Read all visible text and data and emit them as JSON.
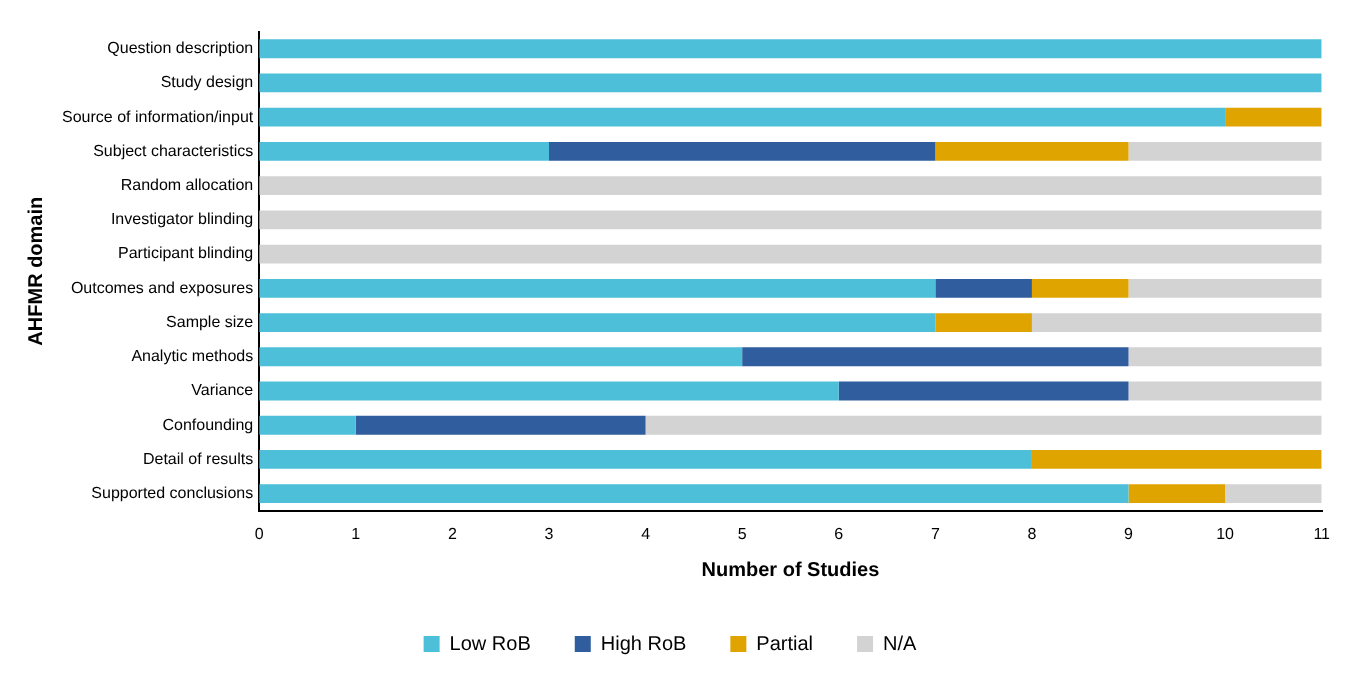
{
  "chart_data": {
    "type": "bar",
    "orientation": "horizontal",
    "stacked": true,
    "xlabel": "Number of Studies",
    "ylabel": "AHFMR domain",
    "categories": [
      "Question description",
      "Study design",
      "Source of information/input",
      "Subject characteristics",
      "Random allocation",
      "Investigator blinding",
      "Participant blinding",
      "Outcomes and exposures",
      "Sample size",
      "Analytic methods",
      "Variance",
      "Confounding",
      "Detail of results",
      "Supported conclusions"
    ],
    "series": [
      {
        "name": "Low RoB",
        "color": "#4dbfd9",
        "values": [
          11,
          11,
          10,
          3,
          0,
          0,
          0,
          7,
          7,
          5,
          6,
          1,
          8,
          9
        ]
      },
      {
        "name": "High RoB",
        "color": "#2f5d9e",
        "values": [
          0,
          0,
          0,
          4,
          0,
          0,
          0,
          1,
          0,
          4,
          3,
          3,
          0,
          0
        ]
      },
      {
        "name": "Partial",
        "color": "#e0a400",
        "values": [
          0,
          0,
          1,
          2,
          0,
          0,
          0,
          1,
          1,
          0,
          0,
          0,
          3,
          1
        ]
      },
      {
        "name": "N/A",
        "color": "#d3d3d3",
        "values": [
          0,
          0,
          0,
          2,
          11,
          11,
          11,
          2,
          3,
          2,
          2,
          7,
          0,
          1
        ]
      }
    ],
    "xlim": [
      0,
      11
    ],
    "xticks": [
      0,
      1,
      2,
      3,
      4,
      5,
      6,
      7,
      8,
      9,
      10,
      11
    ],
    "grid": false,
    "legend": "bottom"
  }
}
